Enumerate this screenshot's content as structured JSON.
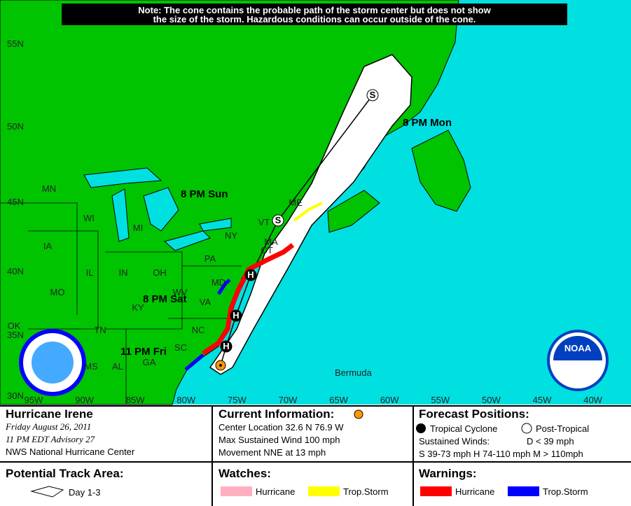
{
  "note": [
    "Note: The cone contains the probable path of the storm center but does not show",
    "the size of the storm. Hazardous conditions can occur outside of the cone."
  ],
  "map": {
    "lat_labels": [
      "55N",
      "50N",
      "45N",
      "40N",
      "35N",
      "30N"
    ],
    "lon_labels": [
      "95W",
      "90W",
      "85W",
      "80W",
      "75W",
      "70W",
      "65W",
      "60W",
      "55W",
      "50W",
      "45W",
      "40W"
    ],
    "state_labels": [
      "MN",
      "WI",
      "MI",
      "IA",
      "IL",
      "IN",
      "OH",
      "PA",
      "NY",
      "MO",
      "KY",
      "WV",
      "VA",
      "MD",
      "NC",
      "TN",
      "SC",
      "OK",
      "MS",
      "AL",
      "GA",
      "ME",
      "VT",
      "MA",
      "CT"
    ],
    "forecast_times": [
      "8 PM Mon",
      "8 PM Sun",
      "8 PM Sat",
      "11 PM Fri"
    ],
    "place_labels": [
      "Bermuda"
    ],
    "symbols": [
      "S",
      "S",
      "H",
      "H",
      "H"
    ],
    "logo": "NOAA"
  },
  "storm": {
    "name": "Hurricane Irene",
    "date": "Friday   August 26, 2011",
    "advisory": "11 PM EDT Advisory 27",
    "center": "NWS National Hurricane Center"
  },
  "current": {
    "title": "Current Information:",
    "location": "Center Location 32.6 N  76.9 W",
    "wind": "Max Sustained Wind  100 mph",
    "movement": "Movement NNE at  13 mph"
  },
  "forecast": {
    "title": "Forecast Positions:",
    "legend": [
      "Tropical Cyclone",
      "Post-Tropical"
    ],
    "winds_label": "Sustained Winds:",
    "d": "D  < 39 mph",
    "shm": "S  39-73 mph  H  74-110 mph  M  > 110mph"
  },
  "track_area": {
    "title": "Potential Track Area:",
    "day": "Day 1-3"
  },
  "watches": {
    "title": "Watches:",
    "items": [
      "Hurricane",
      "Trop.Storm"
    ]
  },
  "warnings": {
    "title": "Warnings:",
    "items": [
      "Hurricane",
      "Trop.Storm"
    ]
  }
}
